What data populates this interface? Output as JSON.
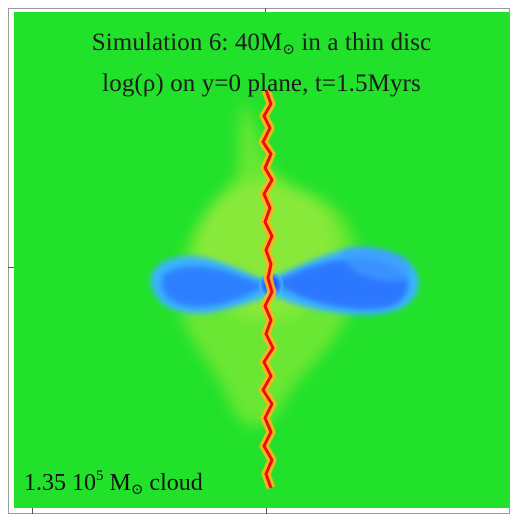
{
  "figure": {
    "title_line1_prefix": "Simulation 6: 40M",
    "title_line1_sub": "⊙",
    "title_line1_suffix": " in a thin disc",
    "title_line2": "log(ρ) on y=0 plane, t=1.5Myrs",
    "cloud_mass_prefix": "1.35 10",
    "cloud_mass_exp": "5",
    "cloud_mass_unit": " M",
    "cloud_mass_unit_sub": "⊙",
    "cloud_mass_suffix": " cloud"
  },
  "colors": {
    "background_density": "#22e12b",
    "halo_density": "#a4ec3a",
    "disc_outer": "#38b8ff",
    "disc_inner": "#1f53ff",
    "jet_hot": "#f30b0b",
    "jet_warm": "#ffae1c",
    "text": "#1b1b1b"
  }
}
